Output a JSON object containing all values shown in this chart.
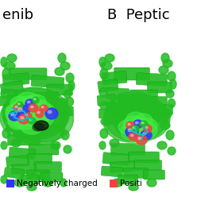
{
  "background_color": "#ffffff",
  "title_left": "enib",
  "title_right": "B  Peptic",
  "title_fontsize": 13,
  "legend": [
    {
      "label": "Negatively charged",
      "color": "#3333ff"
    },
    {
      "label": "Positi",
      "color": "#ee4444"
    }
  ],
  "legend_fontsize": 7.5,
  "figsize": [
    2.48,
    2.48
  ],
  "dpi": 100,
  "green_dark": "#009900",
  "green_mid": "#22bb22",
  "green_light": "#44ee44",
  "green_bright": "#33ff33"
}
